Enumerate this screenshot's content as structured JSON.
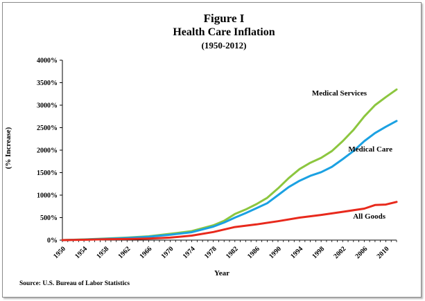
{
  "chart_data": {
    "type": "line",
    "title": "Figure I",
    "subtitle": "Health Care Inflation",
    "period": "(1950-2012)",
    "xlabel": "Year",
    "ylabel": "(% Increase)",
    "source": "Source: U.S. Bureau of Labor Statistics",
    "xlim": [
      1950,
      2012
    ],
    "ylim": [
      0,
      4000
    ],
    "x_ticks": [
      1950,
      1954,
      1958,
      1962,
      1966,
      1970,
      1974,
      1978,
      1982,
      1986,
      1990,
      1994,
      1998,
      2002,
      2006,
      2010
    ],
    "x_tick_labels": [
      "1950",
      "1954",
      "1958",
      "1962",
      "1966",
      "1970",
      "1974",
      "1978",
      "1982",
      "1986",
      "1990",
      "1994",
      "1998",
      "2002",
      "2006",
      "2010"
    ],
    "y_ticks": [
      0,
      500,
      1000,
      1500,
      2000,
      2500,
      3000,
      3500,
      4000
    ],
    "y_tick_labels": [
      "0%",
      "500%",
      "1000%",
      "1500%",
      "2000%",
      "2500%",
      "3000%",
      "3500%",
      "4000%"
    ],
    "grid": false,
    "legend": "inline labels",
    "series": [
      {
        "name": "Medical Services",
        "color": "#8cc63f",
        "points": [
          [
            1950,
            0
          ],
          [
            1954,
            15
          ],
          [
            1958,
            35
          ],
          [
            1962,
            55
          ],
          [
            1966,
            85
          ],
          [
            1970,
            140
          ],
          [
            1974,
            200
          ],
          [
            1978,
            330
          ],
          [
            1980,
            430
          ],
          [
            1982,
            580
          ],
          [
            1984,
            680
          ],
          [
            1986,
            800
          ],
          [
            1988,
            940
          ],
          [
            1990,
            1150
          ],
          [
            1992,
            1380
          ],
          [
            1994,
            1580
          ],
          [
            1996,
            1720
          ],
          [
            1998,
            1830
          ],
          [
            2000,
            1980
          ],
          [
            2002,
            2200
          ],
          [
            2004,
            2450
          ],
          [
            2006,
            2750
          ],
          [
            2008,
            3000
          ],
          [
            2010,
            3180
          ],
          [
            2012,
            3350
          ]
        ]
      },
      {
        "name": "Medical Care",
        "color": "#1ba1e2",
        "points": [
          [
            1950,
            0
          ],
          [
            1954,
            12
          ],
          [
            1958,
            30
          ],
          [
            1962,
            48
          ],
          [
            1966,
            75
          ],
          [
            1970,
            120
          ],
          [
            1974,
            175
          ],
          [
            1978,
            300
          ],
          [
            1980,
            390
          ],
          [
            1982,
            500
          ],
          [
            1984,
            600
          ],
          [
            1986,
            710
          ],
          [
            1988,
            820
          ],
          [
            1990,
            1000
          ],
          [
            1992,
            1180
          ],
          [
            1994,
            1320
          ],
          [
            1996,
            1430
          ],
          [
            1998,
            1510
          ],
          [
            2000,
            1630
          ],
          [
            2002,
            1800
          ],
          [
            2004,
            1980
          ],
          [
            2006,
            2200
          ],
          [
            2008,
            2380
          ],
          [
            2010,
            2520
          ],
          [
            2012,
            2650
          ]
        ]
      },
      {
        "name": "All Goods",
        "color": "#e8291c",
        "points": [
          [
            1950,
            0
          ],
          [
            1954,
            8
          ],
          [
            1958,
            18
          ],
          [
            1962,
            25
          ],
          [
            1966,
            35
          ],
          [
            1970,
            55
          ],
          [
            1974,
            100
          ],
          [
            1978,
            180
          ],
          [
            1982,
            290
          ],
          [
            1986,
            350
          ],
          [
            1990,
            420
          ],
          [
            1994,
            500
          ],
          [
            1998,
            560
          ],
          [
            2002,
            630
          ],
          [
            2006,
            700
          ],
          [
            2008,
            780
          ],
          [
            2010,
            790
          ],
          [
            2012,
            850
          ]
        ]
      }
    ],
    "annotations": [
      {
        "text": "Medical Services",
        "series": "Medical Services"
      },
      {
        "text": "Medical Care",
        "series": "Medical Care"
      },
      {
        "text": "All Goods",
        "series": "All Goods"
      }
    ]
  }
}
